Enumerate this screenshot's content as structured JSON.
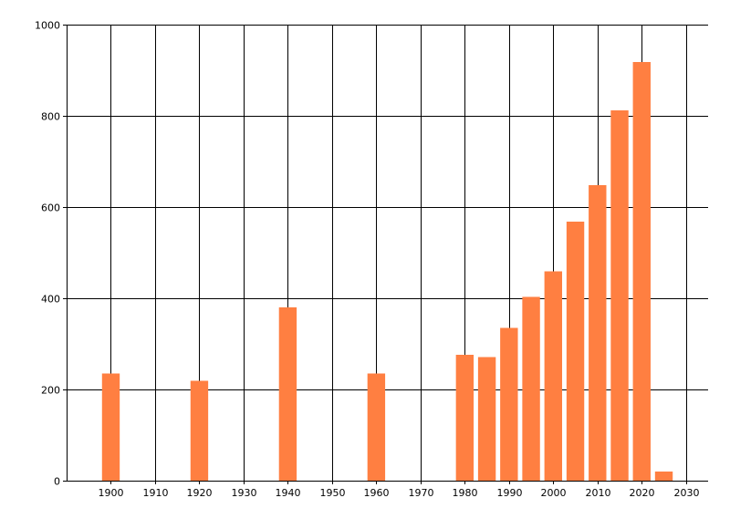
{
  "chart_data": {
    "type": "bar",
    "title": "",
    "xlabel": "",
    "ylabel": "",
    "x": [
      1900,
      1920,
      1940,
      1960,
      1980,
      1985,
      1990,
      1995,
      2000,
      2005,
      2010,
      2015,
      2020,
      2025
    ],
    "values": [
      235,
      219,
      380,
      235,
      276,
      271,
      335,
      403,
      459,
      568,
      648,
      812,
      918,
      20
    ],
    "xlim": [
      1890,
      2035
    ],
    "ylim": [
      0,
      1000
    ],
    "xticks": [
      "1900",
      "1910",
      "1920",
      "1930",
      "1940",
      "1950",
      "1960",
      "1970",
      "1980",
      "1990",
      "2000",
      "2010",
      "2020",
      "2030"
    ],
    "yticks": [
      "0",
      "200",
      "400",
      "600",
      "800",
      "1000"
    ],
    "grid": true,
    "colors": {
      "bar": "#ff7f41",
      "grid": "#000000",
      "background": "#ffffff"
    }
  }
}
